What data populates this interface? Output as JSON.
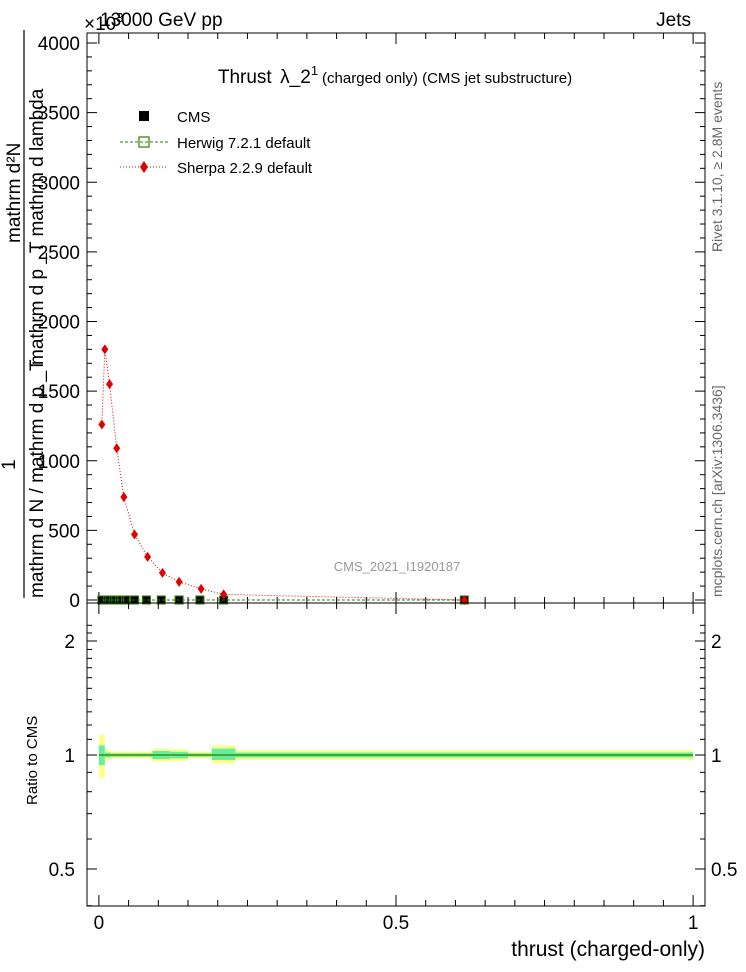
{
  "header": {
    "left": "13000 GeV pp",
    "right": "Jets",
    "exponent": "×10",
    "exponent_power": "3"
  },
  "side_labels": {
    "rivet": "Rivet 3.1.10, ≥ 2.8M events",
    "mcplots": "mcplots.cern.ch [arXiv:1306.3436]"
  },
  "watermark": "CMS_2021_I1920187",
  "chart_data": [
    {
      "type": "line",
      "title": "Thrust",
      "title_symbol": "λ_2",
      "title_sup": "1",
      "title_suffix": "(charged only) (CMS jet substructure)",
      "ylabel_top": "mathrm d²N",
      "ylabel_top_sup": "2",
      "ylabel_mid": "mathrm d p _T mathrm d lambda",
      "ylabel_one": "1",
      "ylabel_bottom": "mathrm d N / mathrm d p _T",
      "xlim": [
        -0.02,
        1.02
      ],
      "ylim": [
        0,
        4000
      ],
      "yticks": [
        "0",
        "500",
        "1000",
        "1500",
        "2000",
        "2500",
        "3000",
        "3500",
        "4000"
      ],
      "ytick_values": [
        0,
        500,
        1000,
        1500,
        2000,
        2500,
        3000,
        3500,
        4000
      ],
      "legend_position": "top-left",
      "series": [
        {
          "name": "CMS",
          "color": "#000000",
          "marker": "filled-square",
          "x": [
            0.005,
            0.015,
            0.025,
            0.035,
            0.045,
            0.06,
            0.08,
            0.105,
            0.135,
            0.17,
            0.21,
            0.615
          ],
          "y": [
            0,
            0,
            0,
            0,
            0,
            0,
            0,
            0,
            0,
            0,
            0,
            0
          ]
        },
        {
          "name": "Herwig 7.2.1 default",
          "color": "#2e7d00",
          "marker": "open-square",
          "x": [
            0.005,
            0.015,
            0.025,
            0.035,
            0.045,
            0.06,
            0.08,
            0.105,
            0.135,
            0.17,
            0.21,
            0.615
          ],
          "y": [
            0,
            0,
            0,
            0,
            0,
            0,
            0,
            0,
            0,
            0,
            0,
            0
          ]
        },
        {
          "name": "Sherpa 2.2.9 default",
          "color": "#e00000",
          "marker": "filled-diamond",
          "x": [
            0.005,
            0.01,
            0.018,
            0.03,
            0.042,
            0.06,
            0.082,
            0.107,
            0.135,
            0.172,
            0.21,
            0.615
          ],
          "y": [
            1260,
            1800,
            1550,
            1090,
            740,
            470,
            310,
            195,
            130,
            80,
            40,
            0
          ]
        }
      ]
    },
    {
      "type": "line",
      "ylabel": "Ratio to CMS",
      "xlabel": "thrust (charged-only)",
      "xlim": [
        -0.02,
        1.02
      ],
      "ylim": [
        0.35,
        2.3
      ],
      "xticks": [
        "0",
        "0.5",
        "1"
      ],
      "xtick_values": [
        0,
        0.5,
        1
      ],
      "yticks": [
        "0.5",
        "1",
        "2"
      ],
      "ytick_values": [
        0.5,
        1,
        2
      ],
      "bands": [
        {
          "x0": 0.0,
          "x1": 0.01,
          "yellow": [
            0.87,
            1.13
          ],
          "green": [
            0.94,
            1.06
          ]
        },
        {
          "x0": 0.01,
          "x1": 0.02,
          "yellow": [
            0.97,
            1.03
          ],
          "green": [
            0.985,
            1.015
          ]
        },
        {
          "x0": 0.02,
          "x1": 0.05,
          "yellow": [
            0.98,
            1.02
          ],
          "green": [
            0.99,
            1.01
          ]
        },
        {
          "x0": 0.05,
          "x1": 0.09,
          "yellow": [
            0.98,
            1.02
          ],
          "green": [
            0.99,
            1.01
          ]
        },
        {
          "x0": 0.09,
          "x1": 0.12,
          "yellow": [
            0.96,
            1.04
          ],
          "green": [
            0.975,
            1.025
          ]
        },
        {
          "x0": 0.12,
          "x1": 0.15,
          "yellow": [
            0.965,
            1.035
          ],
          "green": [
            0.98,
            1.02
          ]
        },
        {
          "x0": 0.15,
          "x1": 0.19,
          "yellow": [
            0.98,
            1.02
          ],
          "green": [
            0.99,
            1.01
          ]
        },
        {
          "x0": 0.19,
          "x1": 0.23,
          "yellow": [
            0.95,
            1.06
          ],
          "green": [
            0.97,
            1.04
          ]
        },
        {
          "x0": 0.23,
          "x1": 1.0,
          "yellow": [
            0.97,
            1.03
          ],
          "green": [
            0.985,
            1.015
          ]
        }
      ]
    }
  ]
}
